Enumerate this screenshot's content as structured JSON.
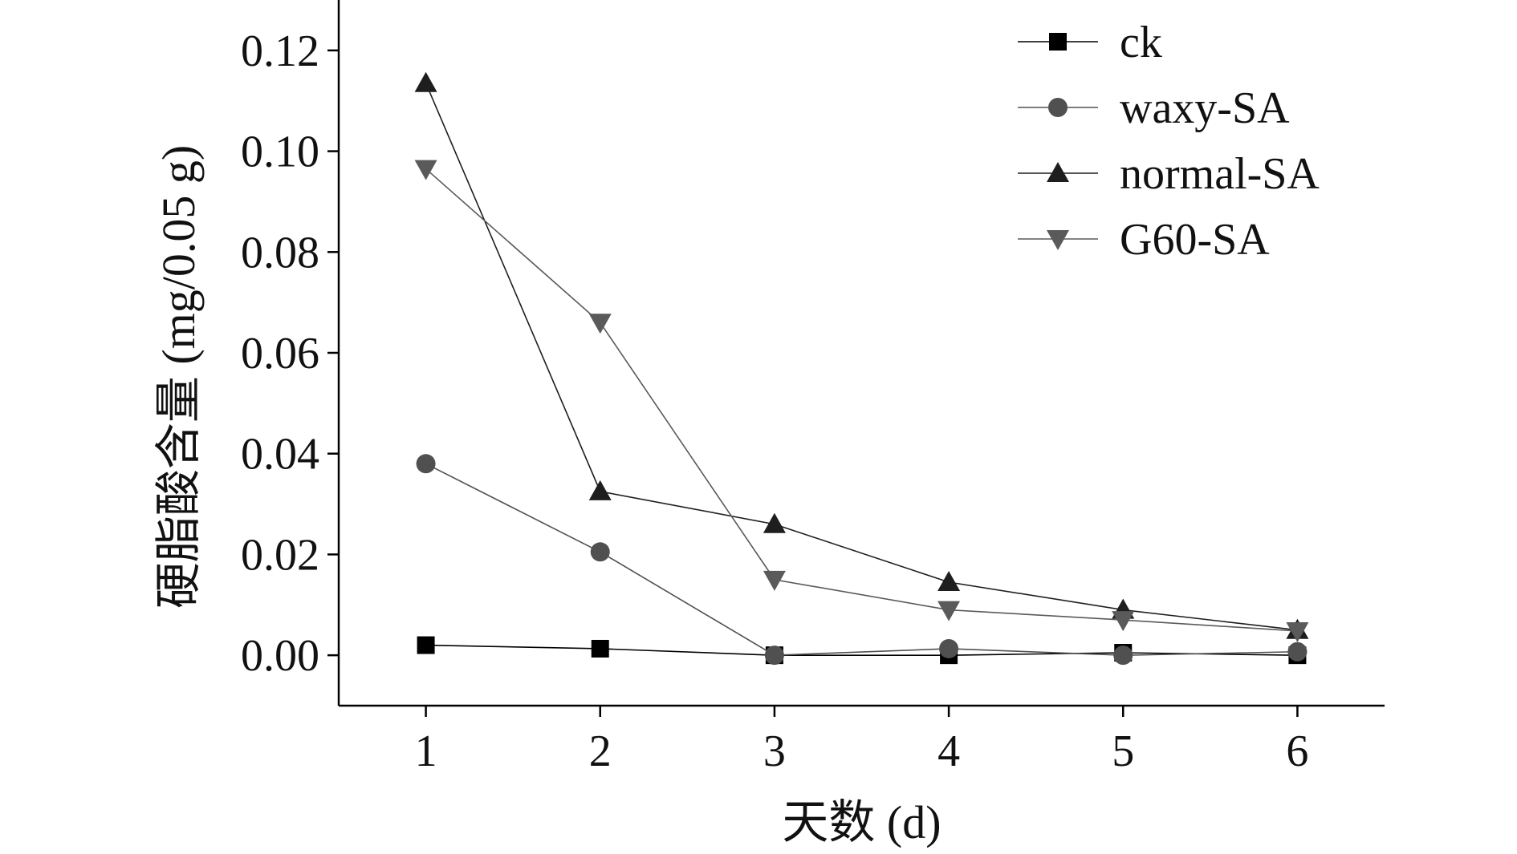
{
  "chart_data": {
    "type": "line",
    "title": "",
    "xlabel": "天数 (d)",
    "ylabel": "硬脂酸含量 (mg/0.05 g)",
    "x": [
      1,
      2,
      3,
      4,
      5,
      6
    ],
    "xlim": [
      0.5,
      6.5
    ],
    "ylim": [
      -0.01,
      0.13
    ],
    "xticks": [
      "1",
      "2",
      "3",
      "4",
      "5",
      "6"
    ],
    "yticks": [
      "0.00",
      "0.02",
      "0.04",
      "0.06",
      "0.08",
      "0.10",
      "0.12"
    ],
    "legend_position": "top-right",
    "grid": false,
    "series": [
      {
        "name": "ck",
        "marker": "square",
        "color": "#000000",
        "values": [
          0.002,
          0.0013,
          0.0,
          0.0,
          0.0005,
          0.0
        ]
      },
      {
        "name": "waxy-SA",
        "marker": "circle",
        "color": "#505050",
        "values": [
          0.038,
          0.0205,
          0.0,
          0.0013,
          0.0,
          0.0007
        ]
      },
      {
        "name": "normal-SA",
        "marker": "triangle-up",
        "color": "#1e1e1e",
        "values": [
          0.1135,
          0.0325,
          0.026,
          0.0145,
          0.009,
          0.005
        ]
      },
      {
        "name": "G60-SA",
        "marker": "triangle-down",
        "color": "#5a5a5a",
        "values": [
          0.0965,
          0.066,
          0.015,
          0.009,
          0.007,
          0.0048
        ]
      }
    ]
  }
}
